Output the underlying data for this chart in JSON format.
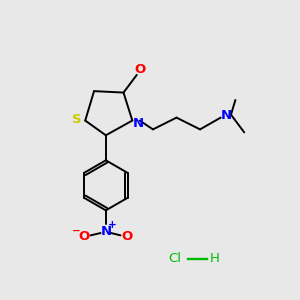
{
  "bg_color": "#e8e8e8",
  "bond_color": "#000000",
  "S_color": "#cccc00",
  "N_color": "#0000ff",
  "O_color": "#ff0000",
  "green_color": "#00bb00",
  "lw": 1.4,
  "fs": 8.5,
  "xlim": [
    0,
    10
  ],
  "ylim": [
    0,
    10
  ]
}
